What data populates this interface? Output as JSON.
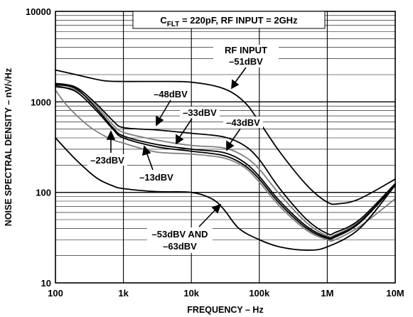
{
  "chart_data": {
    "type": "line",
    "title": "C_FLT = 220pF, RF INPUT = 2GHz",
    "title_parts": {
      "c": "C",
      "sub": "FLT",
      "rest": " = 220pF, RF INPUT = 2GHz"
    },
    "xlabel": "FREQUENCY – Hz",
    "ylabel": "NOISE SPECTRAL DENSITY – nV/√Hz",
    "x_scale": "log",
    "y_scale": "log",
    "xlim": [
      100,
      10000000
    ],
    "ylim": [
      10,
      10000
    ],
    "grid": true,
    "x_ticks": [
      {
        "value": 100,
        "label": "100"
      },
      {
        "value": 1000,
        "label": "1k"
      },
      {
        "value": 10000,
        "label": "10k"
      },
      {
        "value": 100000,
        "label": "100k"
      },
      {
        "value": 1000000,
        "label": "1M"
      },
      {
        "value": 10000000,
        "label": "10M"
      }
    ],
    "y_ticks": [
      {
        "value": 10,
        "label": "10"
      },
      {
        "value": 100,
        "label": "100"
      },
      {
        "value": 1000,
        "label": "1000"
      },
      {
        "value": 10000,
        "label": "10000"
      }
    ],
    "series": [
      {
        "name": "RF INPUT –51dBV",
        "color": "#000000",
        "x": [
          100,
          200,
          500,
          1000,
          3000,
          10000,
          30000,
          60000,
          100000,
          200000,
          500000,
          1000000,
          1500000,
          3000000,
          10000000
        ],
        "y": [
          2250,
          2000,
          1720,
          1680,
          1680,
          1650,
          1400,
          1000,
          600,
          280,
          120,
          78,
          75,
          85,
          140
        ]
      },
      {
        "name": "–48dBV",
        "color": "#000000",
        "x": [
          100,
          200,
          400,
          700,
          1000,
          3000,
          10000,
          30000,
          60000,
          100000,
          200000,
          500000,
          1000000,
          1300000,
          3000000,
          10000000
        ],
        "y": [
          1600,
          1450,
          950,
          620,
          520,
          490,
          450,
          410,
          330,
          230,
          110,
          50,
          35,
          36,
          50,
          125
        ]
      },
      {
        "name": "–43dBV",
        "color": "#7f7f7f",
        "x": [
          100,
          200,
          400,
          700,
          1000,
          3000,
          10000,
          30000,
          60000,
          100000,
          200000,
          500000,
          1000000,
          1300000,
          3000000,
          10000000
        ],
        "y": [
          1450,
          1350,
          900,
          560,
          460,
          380,
          330,
          310,
          250,
          180,
          95,
          46,
          33,
          34,
          48,
          118
        ]
      },
      {
        "name": "–33dBV",
        "color": "#000000",
        "x": [
          100,
          200,
          400,
          700,
          1000,
          3000,
          10000,
          30000,
          60000,
          100000,
          200000,
          500000,
          1000000,
          1300000,
          3000000,
          10000000
        ],
        "y": [
          1550,
          1400,
          850,
          520,
          420,
          340,
          300,
          275,
          215,
          150,
          80,
          42,
          32,
          33,
          47,
          122
        ]
      },
      {
        "name": "–23dBV",
        "color": "#000000",
        "x": [
          100,
          200,
          400,
          700,
          1000,
          3000,
          10000,
          30000,
          60000,
          100000,
          200000,
          500000,
          1000000,
          1300000,
          3000000,
          10000000
        ],
        "y": [
          1500,
          1300,
          800,
          500,
          400,
          320,
          285,
          255,
          200,
          140,
          75,
          40,
          31,
          32,
          46,
          120
        ]
      },
      {
        "name": "–13dBV",
        "color": "#7f7f7f",
        "x": [
          100,
          150,
          300,
          600,
          1000,
          3000,
          10000,
          30000,
          60000,
          100000,
          200000,
          500000,
          1000000,
          1300000,
          3000000,
          10000000
        ],
        "y": [
          1350,
          900,
          550,
          400,
          350,
          280,
          265,
          240,
          190,
          130,
          70,
          38,
          30,
          30,
          42,
          85
        ]
      },
      {
        "name": "–53dBV AND –63dBV",
        "color": "#000000",
        "x": [
          100,
          200,
          400,
          700,
          1000,
          3000,
          10000,
          20000,
          30000,
          50000,
          100000,
          200000,
          500000,
          1000000,
          3000000,
          10000000
        ],
        "y": [
          400,
          230,
          145,
          118,
          110,
          102,
          100,
          85,
          65,
          40,
          30,
          25,
          23,
          25,
          40,
          120
        ]
      }
    ],
    "annotations": [
      {
        "lines": [
          "RF INPUT",
          "–51dBV"
        ]
      },
      {
        "lines": [
          "–48dBV"
        ]
      },
      {
        "lines": [
          "–33dBV"
        ]
      },
      {
        "lines": [
          "–43dBV"
        ]
      },
      {
        "lines": [
          "–23dBV"
        ]
      },
      {
        "lines": [
          "–13dBV"
        ]
      },
      {
        "lines": [
          "–53dBV AND",
          "–63dBV"
        ]
      }
    ]
  }
}
